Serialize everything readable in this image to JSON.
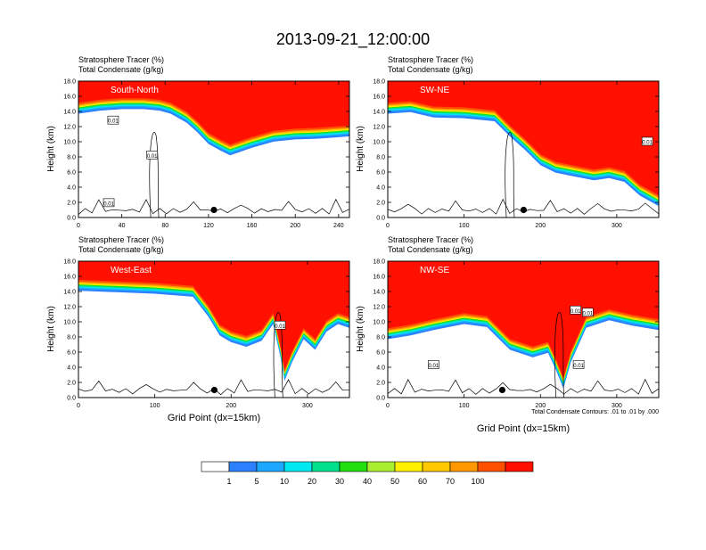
{
  "main_title": "2013-09-21_12:00:00",
  "colors": {
    "levels": [
      "#ffffff",
      "#2a80ff",
      "#1ca8ff",
      "#00e8f0",
      "#00e08a",
      "#22e010",
      "#a8ef30",
      "#fff000",
      "#ffc800",
      "#ff9800",
      "#ff5000",
      "#ff1000"
    ],
    "contour": "#000000",
    "frame": "#000000"
  },
  "chart_data": [
    {
      "type": "heatmap",
      "label": "South-North",
      "title_lines": [
        "Stratosphere Tracer   (%)",
        "Total Condensate   (g/kg)"
      ],
      "ylabel": "Height (km)",
      "xlabel": "",
      "xlim": [
        0,
        250
      ],
      "xticks": [
        0,
        40,
        80,
        120,
        160,
        200,
        240
      ],
      "ylim": [
        0,
        18
      ],
      "yticks": [
        "0.0",
        "2.0",
        "4.0",
        "6.0",
        "8.0",
        "10.0",
        "12.0",
        "14.0",
        "16.0",
        "18.0"
      ],
      "marker": {
        "x": 125,
        "y": 1.0
      },
      "tropo_edge": [
        [
          0,
          15.0
        ],
        [
          20,
          15.4
        ],
        [
          40,
          15.6
        ],
        [
          60,
          15.6
        ],
        [
          75,
          15.4
        ],
        [
          85,
          15.0
        ],
        [
          100,
          13.8
        ],
        [
          110,
          12.5
        ],
        [
          120,
          11.0
        ],
        [
          130,
          10.2
        ],
        [
          140,
          9.5
        ],
        [
          160,
          10.5
        ],
        [
          180,
          11.3
        ],
        [
          200,
          11.6
        ],
        [
          220,
          11.7
        ],
        [
          250,
          12.0
        ]
      ],
      "bottom_x": 70,
      "contour_labels": [
        {
          "text": "0.01",
          "x": 32,
          "y": 12.8
        },
        {
          "text": "0.01",
          "x": 68,
          "y": 8.2
        },
        {
          "text": "0.01",
          "x": 28,
          "y": 1.9
        }
      ]
    },
    {
      "type": "heatmap",
      "label": "SW-NE",
      "title_lines": [
        "Stratosphere Tracer   (%)",
        "Total Condensate   (g/kg)"
      ],
      "ylabel": "Height (km)",
      "xlabel": "",
      "xlim": [
        0,
        355
      ],
      "xticks": [
        0,
        100,
        200,
        300
      ],
      "ylim": [
        0,
        18
      ],
      "yticks": [
        "0.0",
        "2.0",
        "4.0",
        "6.0",
        "8.0",
        "10.0",
        "12.0",
        "14.0",
        "16.0",
        "18.0"
      ],
      "marker": {
        "x": 178,
        "y": 1.0
      },
      "tropo_edge": [
        [
          0,
          15.0
        ],
        [
          30,
          15.2
        ],
        [
          60,
          14.5
        ],
        [
          100,
          14.4
        ],
        [
          140,
          14.0
        ],
        [
          160,
          12.0
        ],
        [
          180,
          10.2
        ],
        [
          200,
          8.2
        ],
        [
          220,
          7.2
        ],
        [
          250,
          6.6
        ],
        [
          270,
          6.2
        ],
        [
          290,
          6.5
        ],
        [
          310,
          6.0
        ],
        [
          330,
          4.2
        ],
        [
          355,
          2.8
        ]
      ],
      "bottom_x": 160,
      "contour_labels": [
        {
          "text": "0.01",
          "x": 340,
          "y": 10.0
        }
      ]
    },
    {
      "type": "heatmap",
      "label": "West-East",
      "title_lines": [
        "Stratosphere Tracer   (%)",
        "Total Condensate   (g/kg)"
      ],
      "ylabel": "Height (km)",
      "xlabel": "Grid Point  (dx=15km)",
      "xlim": [
        0,
        355
      ],
      "xticks": [
        0,
        100,
        200,
        300
      ],
      "ylim": [
        0,
        18
      ],
      "yticks": [
        "0.0",
        "2.0",
        "4.0",
        "6.0",
        "8.0",
        "10.0",
        "12.0",
        "14.0",
        "16.0",
        "18.0"
      ],
      "marker": {
        "x": 178,
        "y": 1.0
      },
      "tropo_edge": [
        [
          0,
          15.4
        ],
        [
          50,
          15.2
        ],
        [
          100,
          15.0
        ],
        [
          150,
          14.6
        ],
        [
          170,
          12.0
        ],
        [
          185,
          9.5
        ],
        [
          200,
          8.6
        ],
        [
          220,
          8.0
        ],
        [
          240,
          8.8
        ],
        [
          255,
          11.0
        ],
        [
          265,
          6.5
        ],
        [
          270,
          3.5
        ],
        [
          280,
          6.0
        ],
        [
          295,
          9.0
        ],
        [
          310,
          7.6
        ],
        [
          325,
          10.0
        ],
        [
          340,
          11.0
        ],
        [
          355,
          10.5
        ]
      ],
      "bottom_x": 262,
      "contour_labels": [
        {
          "text": "0.01",
          "x": 264,
          "y": 9.5
        }
      ]
    },
    {
      "type": "heatmap",
      "label": "NW-SE",
      "title_lines": [
        "Stratosphere Tracer   (%)",
        "Total Condensate   (g/kg)"
      ],
      "ylabel": "Height (km)",
      "xlabel": "Grid Point  (dx=15km)",
      "xlim": [
        0,
        355
      ],
      "xticks": [
        0,
        100,
        200,
        300
      ],
      "ylim": [
        0,
        18
      ],
      "yticks": [
        "0.0",
        "2.0",
        "4.0",
        "6.0",
        "8.0",
        "10.0",
        "12.0",
        "14.0",
        "16.0",
        "18.0"
      ],
      "marker": {
        "x": 150,
        "y": 1.0
      },
      "tropo_edge": [
        [
          0,
          9.0
        ],
        [
          30,
          9.5
        ],
        [
          60,
          10.2
        ],
        [
          100,
          11.0
        ],
        [
          130,
          10.6
        ],
        [
          160,
          7.6
        ],
        [
          190,
          6.6
        ],
        [
          210,
          7.2
        ],
        [
          220,
          5.0
        ],
        [
          230,
          2.5
        ],
        [
          240,
          6.0
        ],
        [
          260,
          10.5
        ],
        [
          290,
          11.5
        ],
        [
          320,
          10.8
        ],
        [
          355,
          10.2
        ]
      ],
      "bottom_x": 225,
      "contour_labels": [
        {
          "text": "0.01",
          "x": 246,
          "y": 11.5
        },
        {
          "text": "0.01",
          "x": 262,
          "y": 11.2
        },
        {
          "text": "0.01",
          "x": 60,
          "y": 4.3
        },
        {
          "text": "0.01",
          "x": 250,
          "y": 4.3
        }
      ],
      "footnote": "Total Condensate Contours: .01 to .01 by .000"
    }
  ],
  "colorbar": {
    "labels": [
      "1",
      "5",
      "10",
      "20",
      "30",
      "40",
      "50",
      "60",
      "70",
      "100"
    ]
  }
}
